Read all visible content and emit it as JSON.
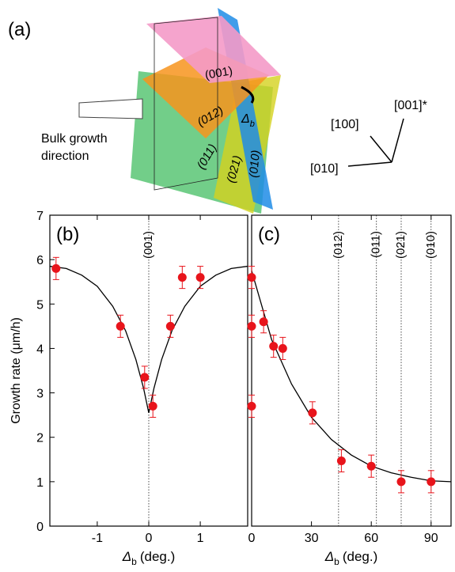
{
  "diagram": {
    "panel_label": "(a)",
    "planes": [
      "(001)",
      "(012)",
      "(011)",
      "(021)",
      "(010)"
    ],
    "angle_symbol": "Δ",
    "angle_sub": "b",
    "arrow_label": [
      "Bulk growth",
      "direction"
    ],
    "axes": [
      "[001]*",
      "[100]",
      "[010]"
    ]
  },
  "chart_data": [
    {
      "type": "scatter",
      "panel_label": "(b)",
      "ylabel": "Growth rate (μm/h)",
      "xlabel_symbol": "Δ",
      "xlabel_sub": "b",
      "xlabel_unit": "(deg.)",
      "xlim": [
        -1.92,
        1.92
      ],
      "ylim": [
        0,
        7
      ],
      "xticks": [
        -1,
        0,
        1
      ],
      "yticks": [
        0,
        1,
        2,
        3,
        4,
        5,
        6,
        7
      ],
      "series": [
        {
          "color": "#e8141b",
          "x": [
            -1.8,
            -0.55,
            -0.08,
            0.08,
            0.42,
            0.65,
            1.0
          ],
          "values": [
            5.8,
            4.5,
            3.35,
            2.7,
            4.5,
            5.6,
            5.6
          ],
          "errors": [
            0.25,
            0.25,
            0.25,
            0.25,
            0.25,
            0.25,
            0.25
          ]
        }
      ],
      "fit": {
        "color": "#000000",
        "x": [
          -1.92,
          -1.6,
          -1.3,
          -1.0,
          -0.7,
          -0.45,
          -0.25,
          -0.1,
          0,
          0.1,
          0.25,
          0.45,
          0.7,
          1.0,
          1.3,
          1.6,
          1.92
        ],
        "values": [
          5.85,
          5.8,
          5.65,
          5.4,
          4.95,
          4.4,
          3.75,
          3.1,
          2.55,
          3.1,
          3.75,
          4.4,
          4.95,
          5.4,
          5.65,
          5.8,
          5.85
        ]
      },
      "markers": [
        {
          "x": 0,
          "label": "(001)"
        }
      ]
    },
    {
      "type": "scatter",
      "panel_label": "(c)",
      "xlabel_symbol": "Δ",
      "xlabel_sub": "b",
      "xlabel_unit": "(deg.)",
      "xlim": [
        0,
        100
      ],
      "ylim": [
        0,
        7
      ],
      "xticks": [
        0,
        30,
        60,
        90
      ],
      "series": [
        {
          "color": "#e8141b",
          "x": [
            0,
            0,
            0,
            6,
            11,
            15.6,
            30.5,
            45,
            60,
            75,
            90
          ],
          "values": [
            5.6,
            4.5,
            2.7,
            4.6,
            4.05,
            4.0,
            2.55,
            1.47,
            1.35,
            1.0,
            1.0
          ],
          "errors": [
            0.25,
            0.25,
            0.25,
            0.25,
            0.25,
            0.25,
            0.25,
            0.25,
            0.25,
            0.25,
            0.25
          ]
        }
      ],
      "fit": {
        "color": "#000000",
        "x": [
          0,
          10,
          20,
          30,
          40,
          50,
          60,
          70,
          80,
          90,
          100
        ],
        "values": [
          5.75,
          4.2,
          3.2,
          2.45,
          1.95,
          1.6,
          1.35,
          1.2,
          1.1,
          1.02,
          1.0
        ]
      },
      "markers": [
        {
          "x": 43.6,
          "label": "(012)"
        },
        {
          "x": 62.6,
          "label": "(011)"
        },
        {
          "x": 75,
          "label": "(021)"
        },
        {
          "x": 90,
          "label": "(010)"
        }
      ]
    }
  ]
}
